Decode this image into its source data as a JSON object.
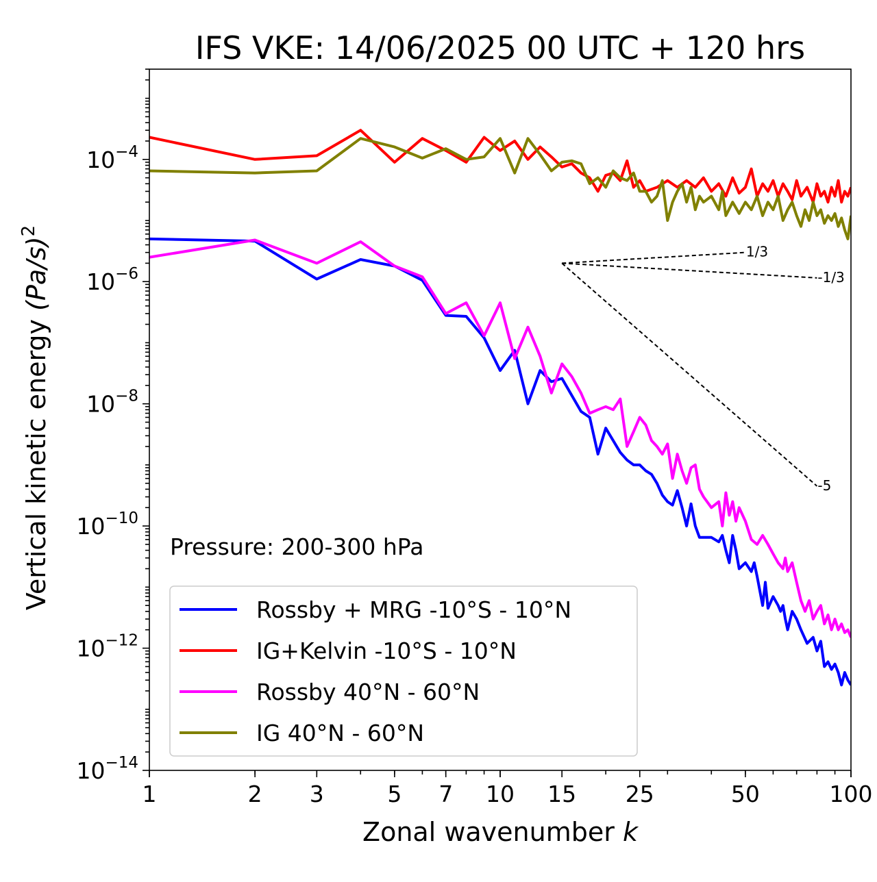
{
  "chart_data": {
    "type": "line",
    "title": "IFS VKE: 14/06/2025 00 UTC + 120 hrs",
    "xlabel": "Zonal wavenumber",
    "xlabel_italic": "k",
    "ylabel": "Vertical kinetic energy",
    "ylabel_unit": "(Pa/s)",
    "ylabel_power": "2",
    "xscale": "log",
    "yscale": "log",
    "xlim": [
      1,
      100
    ],
    "ylim": [
      1e-14,
      0.003
    ],
    "x_ticks": [
      1,
      2,
      3,
      5,
      7,
      10,
      15,
      25,
      50,
      100
    ],
    "x_tick_labels": [
      "1",
      "2",
      "3",
      "5",
      "7",
      "10",
      "15",
      "25",
      "50",
      "100"
    ],
    "y_ticks": [
      {
        "value": 0.0001,
        "base": "10",
        "exp": "−4"
      },
      {
        "value": 1e-06,
        "base": "10",
        "exp": "−6"
      },
      {
        "value": 1e-08,
        "base": "10",
        "exp": "−8"
      },
      {
        "value": 1e-10,
        "base": "10",
        "exp": "−10"
      },
      {
        "value": 1e-12,
        "base": "10",
        "exp": "−12"
      },
      {
        "value": 1e-14,
        "base": "10",
        "exp": "−14"
      }
    ],
    "annotation": "Pressure: 200-300 hPa",
    "legend_position": "lower-left",
    "series": [
      {
        "name": "Rossby + MRG -10°S - 10°N",
        "color": "#0000ff",
        "points": [
          [
            1,
            5e-06
          ],
          [
            2,
            4.6e-06
          ],
          [
            3,
            1.1e-06
          ],
          [
            4,
            2.3e-06
          ],
          [
            5,
            1.8e-06
          ],
          [
            6,
            1.05e-06
          ],
          [
            7,
            2.8e-07
          ],
          [
            8,
            2.7e-07
          ],
          [
            9,
            1.2e-07
          ],
          [
            10,
            3.5e-08
          ],
          [
            11,
            7.5e-08
          ],
          [
            12,
            1e-08
          ],
          [
            13,
            3.5e-08
          ],
          [
            14,
            2.3e-08
          ],
          [
            15,
            2.6e-08
          ],
          [
            17,
            7.5e-09
          ],
          [
            18,
            6e-09
          ],
          [
            19,
            1.5e-09
          ],
          [
            20,
            4e-09
          ],
          [
            22,
            1.6e-09
          ],
          [
            23,
            1.2e-09
          ],
          [
            24,
            1e-09
          ],
          [
            25,
            1e-09
          ],
          [
            26,
            8e-10
          ],
          [
            27,
            7e-10
          ],
          [
            28,
            5e-10
          ],
          [
            29,
            3.2e-10
          ],
          [
            30,
            2.5e-10
          ],
          [
            31,
            2.2e-10
          ],
          [
            32,
            3.8e-10
          ],
          [
            33,
            2e-10
          ],
          [
            34,
            1e-10
          ],
          [
            35,
            2.3e-10
          ],
          [
            36,
            1e-10
          ],
          [
            37,
            6.5e-11
          ],
          [
            40,
            6.5e-11
          ],
          [
            42,
            5.5e-11
          ],
          [
            43,
            7e-11
          ],
          [
            44,
            4e-11
          ],
          [
            45,
            2.5e-11
          ],
          [
            46,
            7e-11
          ],
          [
            47,
            4e-11
          ],
          [
            48,
            2e-11
          ],
          [
            50,
            2.5e-11
          ],
          [
            52,
            1.8e-11
          ],
          [
            53,
            2.5e-11
          ],
          [
            54,
            1.5e-11
          ],
          [
            56,
            5e-12
          ],
          [
            57,
            1.2e-11
          ],
          [
            58,
            4.5e-12
          ],
          [
            60,
            7e-12
          ],
          [
            62,
            5e-12
          ],
          [
            63,
            4e-12
          ],
          [
            64,
            5e-12
          ],
          [
            65,
            3e-12
          ],
          [
            66,
            2e-12
          ],
          [
            68,
            4e-12
          ],
          [
            70,
            3e-12
          ],
          [
            72,
            2e-12
          ],
          [
            75,
            1.2e-12
          ],
          [
            78,
            1.5e-12
          ],
          [
            80,
            9e-13
          ],
          [
            82,
            1.3e-12
          ],
          [
            84,
            5e-13
          ],
          [
            86,
            6e-13
          ],
          [
            88,
            4.5e-13
          ],
          [
            90,
            5.5e-13
          ],
          [
            92,
            4e-13
          ],
          [
            94,
            2.5e-13
          ],
          [
            96,
            4e-13
          ],
          [
            98,
            3e-13
          ],
          [
            100,
            2.5e-13
          ]
        ]
      },
      {
        "name": "IG+Kelvin -10°S - 10°N",
        "color": "#ff0000",
        "points": [
          [
            1,
            0.00023
          ],
          [
            2,
            0.0001
          ],
          [
            3,
            0.000115
          ],
          [
            4,
            0.0003
          ],
          [
            5,
            9e-05
          ],
          [
            6,
            0.00022
          ],
          [
            7,
            0.00014
          ],
          [
            8,
            9e-05
          ],
          [
            9,
            0.00023
          ],
          [
            10,
            0.00014
          ],
          [
            11,
            0.0002
          ],
          [
            12,
            0.0001
          ],
          [
            13,
            0.00016
          ],
          [
            14,
            0.00011
          ],
          [
            15,
            7.5e-05
          ],
          [
            16,
            8.5e-05
          ],
          [
            17,
            6e-05
          ],
          [
            18,
            5e-05
          ],
          [
            19,
            3e-05
          ],
          [
            20,
            5.5e-05
          ],
          [
            21,
            6e-05
          ],
          [
            22,
            4.5e-05
          ],
          [
            23,
            9.5e-05
          ],
          [
            24,
            3.5e-05
          ],
          [
            25,
            4.5e-05
          ],
          [
            26,
            3e-05
          ],
          [
            28,
            3.5e-05
          ],
          [
            30,
            4.5e-05
          ],
          [
            32,
            3.5e-05
          ],
          [
            34,
            4.5e-05
          ],
          [
            36,
            3.5e-05
          ],
          [
            38,
            5e-05
          ],
          [
            40,
            3e-05
          ],
          [
            42,
            4e-05
          ],
          [
            44,
            2.5e-05
          ],
          [
            46,
            5e-05
          ],
          [
            48,
            2.8e-05
          ],
          [
            50,
            3.5e-05
          ],
          [
            52,
            7e-05
          ],
          [
            54,
            2.5e-05
          ],
          [
            56,
            4e-05
          ],
          [
            58,
            3e-05
          ],
          [
            60,
            4.5e-05
          ],
          [
            62,
            2.5e-05
          ],
          [
            64,
            4e-05
          ],
          [
            66,
            3e-05
          ],
          [
            68,
            2.2e-05
          ],
          [
            70,
            4.5e-05
          ],
          [
            72,
            2.5e-05
          ],
          [
            75,
            3.5e-05
          ],
          [
            78,
            2e-05
          ],
          [
            80,
            4e-05
          ],
          [
            82,
            2.5e-05
          ],
          [
            84,
            3e-05
          ],
          [
            86,
            2e-05
          ],
          [
            88,
            3.5e-05
          ],
          [
            90,
            2.5e-05
          ],
          [
            92,
            4.5e-05
          ],
          [
            94,
            2e-05
          ],
          [
            96,
            3e-05
          ],
          [
            98,
            2.5e-05
          ],
          [
            100,
            3.5e-05
          ]
        ]
      },
      {
        "name": "Rossby 40°N - 60°N",
        "color": "#ff00ff",
        "points": [
          [
            1,
            2.5e-06
          ],
          [
            2,
            4.8e-06
          ],
          [
            3,
            2e-06
          ],
          [
            4,
            4.5e-06
          ],
          [
            5,
            1.8e-06
          ],
          [
            6,
            1.2e-06
          ],
          [
            7,
            3e-07
          ],
          [
            8,
            4.5e-07
          ],
          [
            9,
            1.3e-07
          ],
          [
            10,
            4.5e-07
          ],
          [
            11,
            5.5e-08
          ],
          [
            12,
            1.8e-07
          ],
          [
            13,
            6e-08
          ],
          [
            14,
            1.5e-08
          ],
          [
            15,
            4.5e-08
          ],
          [
            16,
            2.8e-08
          ],
          [
            17,
            1.5e-08
          ],
          [
            18,
            7e-09
          ],
          [
            19,
            8e-09
          ],
          [
            20,
            9e-09
          ],
          [
            21,
            8e-09
          ],
          [
            22,
            1.2e-08
          ],
          [
            23,
            2e-09
          ],
          [
            24,
            3.5e-09
          ],
          [
            25,
            6e-09
          ],
          [
            26,
            4.5e-09
          ],
          [
            27,
            2.5e-09
          ],
          [
            28,
            2e-09
          ],
          [
            29,
            1.5e-09
          ],
          [
            30,
            2.2e-09
          ],
          [
            31,
            6e-10
          ],
          [
            32,
            1.5e-09
          ],
          [
            33,
            8e-10
          ],
          [
            34,
            5e-10
          ],
          [
            35,
            9e-10
          ],
          [
            36,
            1e-09
          ],
          [
            37,
            4e-10
          ],
          [
            38,
            3e-10
          ],
          [
            40,
            2e-10
          ],
          [
            42,
            2.5e-10
          ],
          [
            43,
            1e-10
          ],
          [
            44,
            3.5e-10
          ],
          [
            45,
            1.5e-10
          ],
          [
            46,
            2.5e-10
          ],
          [
            47,
            1.2e-10
          ],
          [
            48,
            2e-10
          ],
          [
            50,
            1.2e-10
          ],
          [
            52,
            6e-11
          ],
          [
            54,
            5e-11
          ],
          [
            56,
            7e-11
          ],
          [
            58,
            5e-11
          ],
          [
            60,
            3.5e-11
          ],
          [
            62,
            2.5e-11
          ],
          [
            64,
            2e-11
          ],
          [
            65,
            3e-11
          ],
          [
            66,
            1.8e-11
          ],
          [
            68,
            2.5e-11
          ],
          [
            70,
            1.2e-11
          ],
          [
            72,
            6e-12
          ],
          [
            74,
            4e-12
          ],
          [
            76,
            6e-12
          ],
          [
            78,
            3e-12
          ],
          [
            80,
            4e-12
          ],
          [
            82,
            5e-12
          ],
          [
            84,
            2.5e-12
          ],
          [
            86,
            3.5e-12
          ],
          [
            88,
            2e-12
          ],
          [
            90,
            3e-12
          ],
          [
            92,
            2e-12
          ],
          [
            94,
            2.5e-12
          ],
          [
            96,
            1.8e-12
          ],
          [
            98,
            2e-12
          ],
          [
            100,
            1.5e-12
          ]
        ]
      },
      {
        "name": "IG 40°N - 60°N",
        "color": "#808000",
        "points": [
          [
            1,
            6.5e-05
          ],
          [
            2,
            6e-05
          ],
          [
            3,
            6.5e-05
          ],
          [
            4,
            0.00022
          ],
          [
            5,
            0.00016
          ],
          [
            6,
            0.000105
          ],
          [
            7,
            0.00015
          ],
          [
            8,
            0.0001
          ],
          [
            9,
            0.00011
          ],
          [
            10,
            0.00022
          ],
          [
            11,
            6e-05
          ],
          [
            12,
            0.00022
          ],
          [
            13,
            0.00012
          ],
          [
            14,
            6.5e-05
          ],
          [
            15,
            9e-05
          ],
          [
            16,
            9.5e-05
          ],
          [
            17,
            8.5e-05
          ],
          [
            18,
            4e-05
          ],
          [
            19,
            5e-05
          ],
          [
            20,
            3.5e-05
          ],
          [
            21,
            6.5e-05
          ],
          [
            22,
            5e-05
          ],
          [
            23,
            4.5e-05
          ],
          [
            24,
            6e-05
          ],
          [
            25,
            3e-05
          ],
          [
            26,
            3e-05
          ],
          [
            27,
            2e-05
          ],
          [
            28,
            2.5e-05
          ],
          [
            29,
            4.5e-05
          ],
          [
            30,
            1e-05
          ],
          [
            31,
            2e-05
          ],
          [
            32,
            3e-05
          ],
          [
            33,
            4e-05
          ],
          [
            34,
            2e-05
          ],
          [
            35,
            3.5e-05
          ],
          [
            36,
            1.5e-05
          ],
          [
            37,
            2.5e-05
          ],
          [
            38,
            2e-05
          ],
          [
            40,
            2.5e-05
          ],
          [
            42,
            1.5e-05
          ],
          [
            43,
            3e-05
          ],
          [
            44,
            1.2e-05
          ],
          [
            46,
            2e-05
          ],
          [
            48,
            1.3e-05
          ],
          [
            50,
            2e-05
          ],
          [
            52,
            1.5e-05
          ],
          [
            54,
            2.5e-05
          ],
          [
            56,
            1.2e-05
          ],
          [
            58,
            2e-05
          ],
          [
            60,
            1.5e-05
          ],
          [
            62,
            2.5e-05
          ],
          [
            64,
            1e-05
          ],
          [
            66,
            1.5e-05
          ],
          [
            68,
            2e-05
          ],
          [
            70,
            1.2e-05
          ],
          [
            72,
            8e-06
          ],
          [
            74,
            1.5e-05
          ],
          [
            76,
            1e-05
          ],
          [
            78,
            2e-05
          ],
          [
            80,
            1.2e-05
          ],
          [
            82,
            1.5e-05
          ],
          [
            84,
            9e-06
          ],
          [
            86,
            1.2e-05
          ],
          [
            88,
            1e-05
          ],
          [
            90,
            1.3e-05
          ],
          [
            92,
            8e-06
          ],
          [
            94,
            1.1e-05
          ],
          [
            96,
            7e-06
          ],
          [
            98,
            5e-06
          ],
          [
            100,
            1.2e-05
          ]
        ]
      }
    ],
    "reference_lines": [
      {
        "label": "1/3",
        "x": [
          15,
          50
        ],
        "y": [
          2e-06,
          3e-06
        ]
      },
      {
        "label": "-1/3",
        "x": [
          15,
          80
        ],
        "y": [
          2e-06,
          1.15e-06
        ]
      },
      {
        "label": "-5",
        "x": [
          15,
          80
        ],
        "y": [
          2e-06,
          4.5e-10
        ]
      }
    ]
  }
}
